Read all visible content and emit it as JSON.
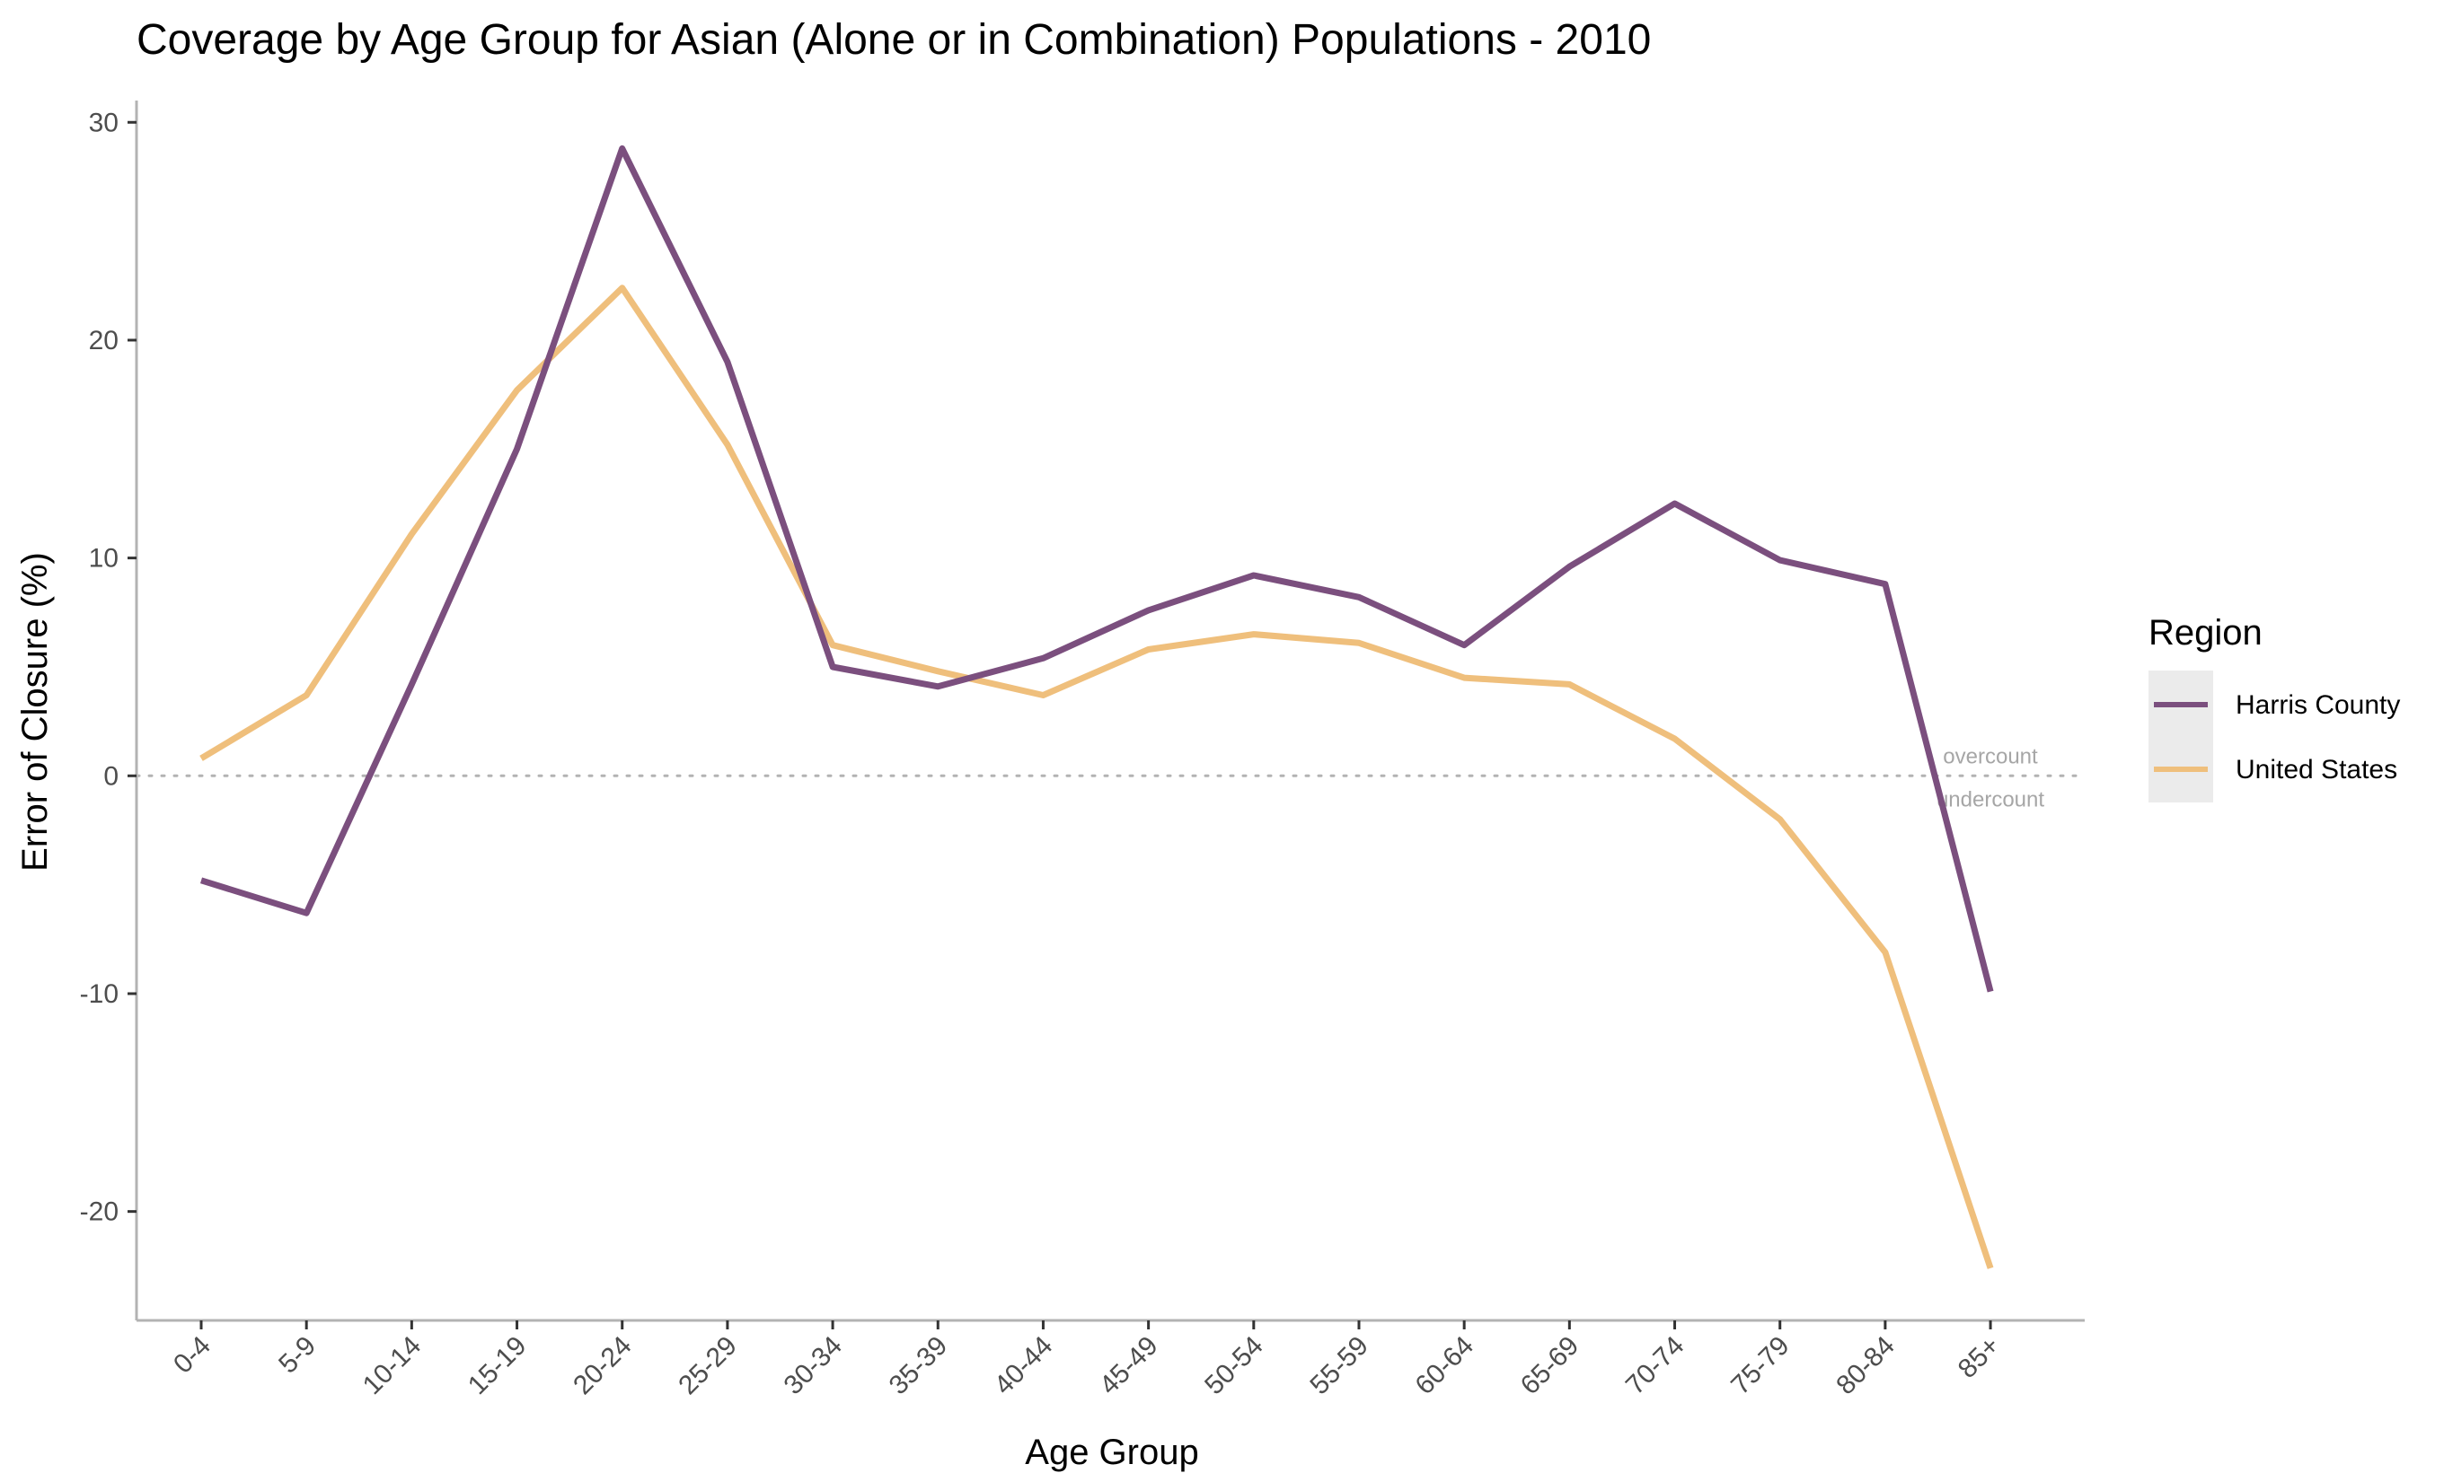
{
  "chart_data": {
    "type": "line",
    "title": "Coverage by Age Group for Asian (Alone or in Combination) Populations - 2010",
    "xlabel": "Age Group",
    "ylabel": "Error of Closure (%)",
    "categories": [
      "0-4",
      "5-9",
      "10-14",
      "15-19",
      "20-24",
      "25-29",
      "30-34",
      "35-39",
      "40-44",
      "45-49",
      "50-54",
      "55-59",
      "60-64",
      "65-69",
      "70-74",
      "75-79",
      "80-84",
      "85+"
    ],
    "yticks": [
      -20,
      -10,
      0,
      10,
      20,
      30
    ],
    "ylim": [
      -25,
      31
    ],
    "grid": false,
    "legend": {
      "title": "Region",
      "position": "right"
    },
    "series": [
      {
        "name": "Harris County",
        "color": "#7b4f7e",
        "values": [
          -4.8,
          -6.3,
          4.2,
          15.0,
          28.8,
          19.0,
          5.0,
          4.1,
          5.4,
          7.6,
          9.2,
          8.2,
          6.0,
          9.6,
          12.5,
          9.9,
          8.8,
          -9.9
        ]
      },
      {
        "name": "United States",
        "color": "#efbf7c",
        "values": [
          0.8,
          3.7,
          11.1,
          17.7,
          22.4,
          15.2,
          6.0,
          4.8,
          3.7,
          5.8,
          6.5,
          6.1,
          4.5,
          4.2,
          1.7,
          -2.0,
          -8.1,
          -22.6
        ]
      }
    ],
    "reference_line": {
      "y": 0,
      "label_above": "overcount",
      "label_below": "undercount",
      "color": "#b3b3b3"
    }
  }
}
